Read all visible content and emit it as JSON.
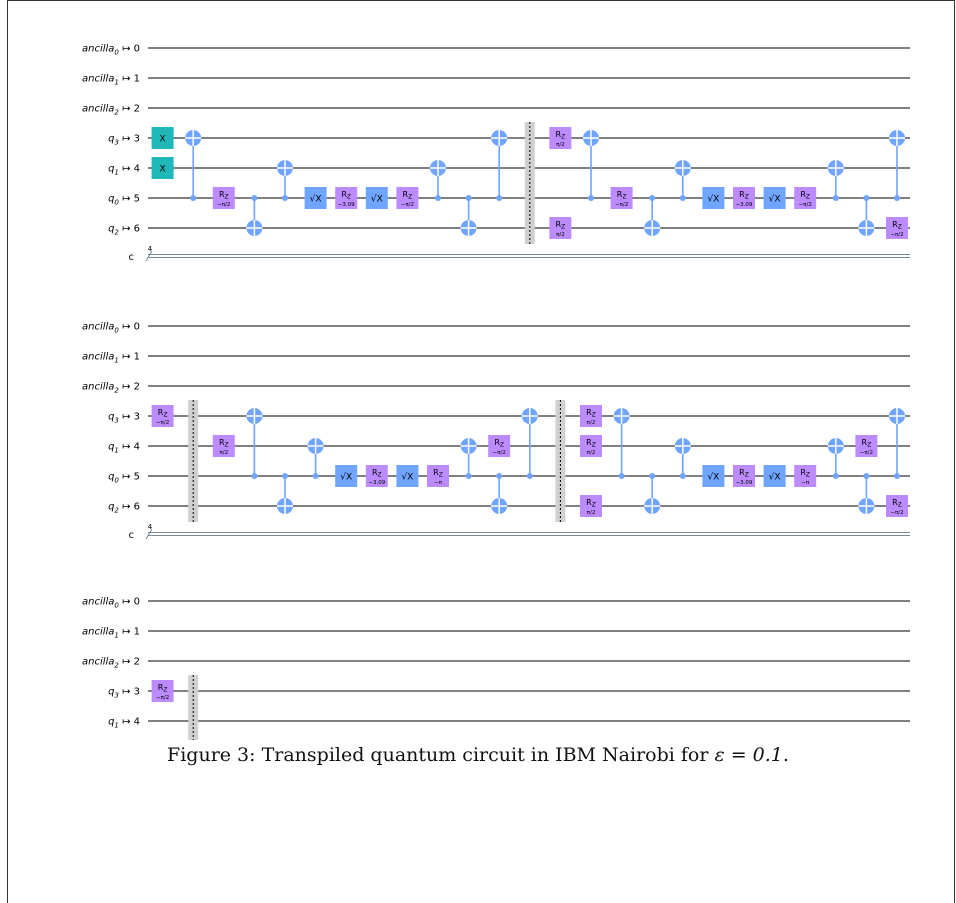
{
  "figure": {
    "caption_prefix": "Figure 3: Transpiled quantum circuit in IBM Nairobi for ",
    "caption_math": "ε = 0.1",
    "caption_suffix": "."
  },
  "colors": {
    "x_gate": "#1fb7b7",
    "rz_gate": "#bb8bff",
    "sx_gate": "#6fa4ff",
    "cx": "#6fa4ff",
    "barrier": "#d0d0d0",
    "wire": "#000000",
    "cwire": "#778899"
  },
  "qubit_labels": [
    {
      "name": "ancilla",
      "sub": "0",
      "phys": "0"
    },
    {
      "name": "ancilla",
      "sub": "1",
      "phys": "1"
    },
    {
      "name": "ancilla",
      "sub": "2",
      "phys": "2"
    },
    {
      "name": "q",
      "sub": "3",
      "phys": "3"
    },
    {
      "name": "q",
      "sub": "1",
      "phys": "4"
    },
    {
      "name": "q",
      "sub": "0",
      "phys": "5"
    },
    {
      "name": "q",
      "sub": "2",
      "phys": "6"
    }
  ],
  "classical": {
    "name": "c",
    "size": "4"
  },
  "panels": [
    {
      "ops": [
        {
          "t": "x",
          "q": 3,
          "c": 1,
          "label": "X"
        },
        {
          "t": "x",
          "q": 4,
          "c": 1,
          "label": "X"
        },
        {
          "t": "cx",
          "c": 2,
          "ctrl": 5,
          "tgt": 3
        },
        {
          "t": "rz",
          "q": 5,
          "c": 3,
          "label": "RZ",
          "param": "−π/2"
        },
        {
          "t": "cx",
          "c": 4,
          "ctrl": 5,
          "tgt": 6
        },
        {
          "t": "cx",
          "c": 5,
          "ctrl": 5,
          "tgt": 4
        },
        {
          "t": "sx",
          "q": 5,
          "c": 6,
          "label": "√X"
        },
        {
          "t": "rz",
          "q": 5,
          "c": 7,
          "label": "RZ",
          "param": "−3.09"
        },
        {
          "t": "sx",
          "q": 5,
          "c": 8,
          "label": "√X"
        },
        {
          "t": "rz",
          "q": 5,
          "c": 9,
          "label": "RZ",
          "param": "−π/2"
        },
        {
          "t": "cx",
          "c": 10,
          "ctrl": 5,
          "tgt": 4
        },
        {
          "t": "cx",
          "c": 11,
          "ctrl": 5,
          "tgt": 6
        },
        {
          "t": "cx",
          "c": 12,
          "ctrl": 5,
          "tgt": 3
        },
        {
          "t": "barrier",
          "c": 13,
          "from": 3,
          "to": 6
        },
        {
          "t": "rz",
          "q": 3,
          "c": 14,
          "label": "RZ",
          "param": "π/2"
        },
        {
          "t": "rz",
          "q": 6,
          "c": 14,
          "label": "RZ",
          "param": "π/2"
        },
        {
          "t": "cx",
          "c": 15,
          "ctrl": 5,
          "tgt": 3
        },
        {
          "t": "rz",
          "q": 5,
          "c": 16,
          "label": "RZ",
          "param": "−π/2"
        },
        {
          "t": "cx",
          "c": 17,
          "ctrl": 5,
          "tgt": 6
        },
        {
          "t": "cx",
          "c": 18,
          "ctrl": 5,
          "tgt": 4
        },
        {
          "t": "sx",
          "q": 5,
          "c": 19,
          "label": "√X"
        },
        {
          "t": "rz",
          "q": 5,
          "c": 20,
          "label": "RZ",
          "param": "−3.09"
        },
        {
          "t": "sx",
          "q": 5,
          "c": 21,
          "label": "√X"
        },
        {
          "t": "rz",
          "q": 5,
          "c": 22,
          "label": "RZ",
          "param": "−π/2"
        },
        {
          "t": "cx",
          "c": 23,
          "ctrl": 5,
          "tgt": 4
        },
        {
          "t": "cx",
          "c": 24,
          "ctrl": 5,
          "tgt": 6
        },
        {
          "t": "cx",
          "c": 25,
          "ctrl": 5,
          "tgt": 3
        },
        {
          "t": "rz",
          "q": 6,
          "c": 25,
          "label": "RZ",
          "param": "−π/2"
        }
      ]
    },
    {
      "ops": [
        {
          "t": "rz",
          "q": 3,
          "c": 1,
          "label": "RZ",
          "param": "−π/2"
        },
        {
          "t": "barrier",
          "c": 2,
          "from": 3,
          "to": 6
        },
        {
          "t": "rz",
          "q": 4,
          "c": 3,
          "label": "RZ",
          "param": "π/2"
        },
        {
          "t": "cx",
          "c": 4,
          "ctrl": 5,
          "tgt": 3
        },
        {
          "t": "cx",
          "c": 5,
          "ctrl": 5,
          "tgt": 6
        },
        {
          "t": "cx",
          "c": 6,
          "ctrl": 5,
          "tgt": 4
        },
        {
          "t": "sx",
          "q": 5,
          "c": 7,
          "label": "√X"
        },
        {
          "t": "rz",
          "q": 5,
          "c": 8,
          "label": "RZ",
          "param": "−3.09"
        },
        {
          "t": "sx",
          "q": 5,
          "c": 9,
          "label": "√X"
        },
        {
          "t": "rz",
          "q": 5,
          "c": 10,
          "label": "RZ",
          "param": "−π"
        },
        {
          "t": "cx",
          "c": 11,
          "ctrl": 5,
          "tgt": 4
        },
        {
          "t": "rz",
          "q": 4,
          "c": 12,
          "label": "RZ",
          "param": "−π/2"
        },
        {
          "t": "cx",
          "c": 12,
          "ctrl": 5,
          "tgt": 6
        },
        {
          "t": "cx",
          "c": 13,
          "ctrl": 5,
          "tgt": 3
        },
        {
          "t": "barrier",
          "c": 14,
          "from": 3,
          "to": 6
        },
        {
          "t": "rz",
          "q": 3,
          "c": 15,
          "label": "RZ",
          "param": "π/2"
        },
        {
          "t": "rz",
          "q": 4,
          "c": 15,
          "label": "RZ",
          "param": "π/2"
        },
        {
          "t": "rz",
          "q": 6,
          "c": 15,
          "label": "RZ",
          "param": "π/2"
        },
        {
          "t": "cx",
          "c": 16,
          "ctrl": 5,
          "tgt": 3
        },
        {
          "t": "cx",
          "c": 17,
          "ctrl": 5,
          "tgt": 6
        },
        {
          "t": "cx",
          "c": 18,
          "ctrl": 5,
          "tgt": 4
        },
        {
          "t": "sx",
          "q": 5,
          "c": 19,
          "label": "√X"
        },
        {
          "t": "rz",
          "q": 5,
          "c": 20,
          "label": "RZ",
          "param": "−3.09"
        },
        {
          "t": "sx",
          "q": 5,
          "c": 21,
          "label": "√X"
        },
        {
          "t": "rz",
          "q": 5,
          "c": 22,
          "label": "RZ",
          "param": "−π"
        },
        {
          "t": "cx",
          "c": 23,
          "ctrl": 5,
          "tgt": 4
        },
        {
          "t": "rz",
          "q": 4,
          "c": 24,
          "label": "RZ",
          "param": "−π/2"
        },
        {
          "t": "cx",
          "c": 24,
          "ctrl": 5,
          "tgt": 6
        },
        {
          "t": "cx",
          "c": 25,
          "ctrl": 5,
          "tgt": 3
        },
        {
          "t": "rz",
          "q": 6,
          "c": 25,
          "label": "RZ",
          "param": "−π/2"
        }
      ]
    },
    {
      "ops": [
        {
          "t": "rz",
          "q": 3,
          "c": 1,
          "label": "RZ",
          "param": "−π/2"
        },
        {
          "t": "barrier",
          "c": 2,
          "from": 3,
          "to": 6
        }
      ]
    }
  ]
}
